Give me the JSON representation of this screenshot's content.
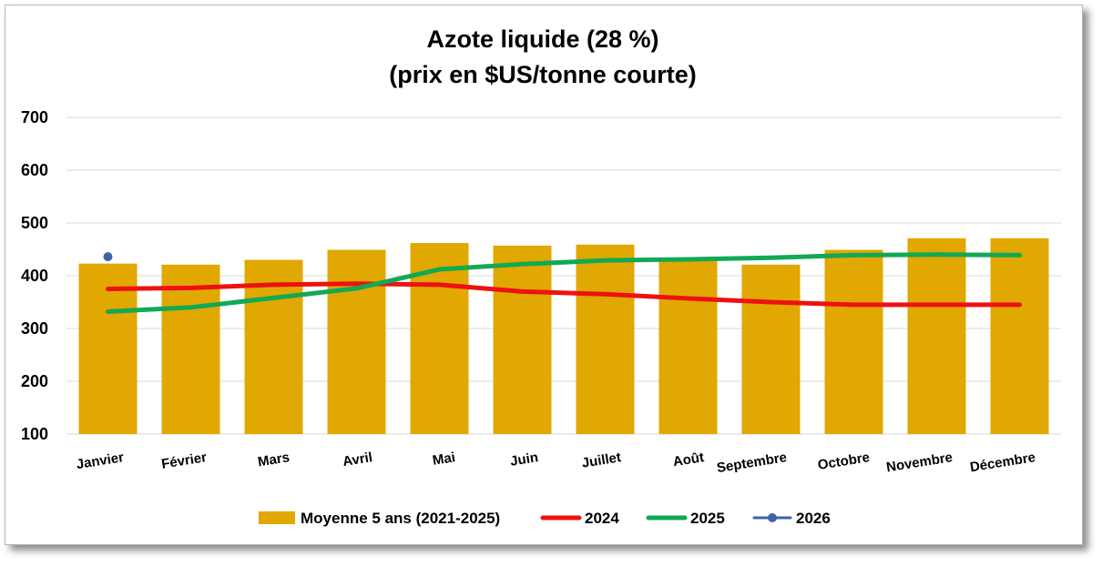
{
  "chart_data": {
    "type": "bar",
    "title": "Azote liquide (28 %)",
    "subtitle": "(prix en $US/tonne courte)",
    "xlabel": "",
    "ylabel": "",
    "ylim": [
      100,
      700
    ],
    "yticks": [
      100,
      200,
      300,
      400,
      500,
      600,
      700
    ],
    "grid": true,
    "legend_position": "bottom",
    "categories": [
      "Janvier",
      "Février",
      "Mars",
      "Avril",
      "Mai",
      "Juin",
      "Juillet",
      "Août",
      "Septembre",
      "Octobre",
      "Novembre",
      "Décembre"
    ],
    "bar_series": {
      "name": "Moyenne 5 ans (2021-2025)",
      "color": "#E0A800",
      "values": [
        423,
        421,
        430,
        449,
        462,
        457,
        459,
        431,
        421,
        449,
        471,
        471
      ]
    },
    "line_series": [
      {
        "name": "2024",
        "color": "#EE1111",
        "values": [
          375,
          377,
          383,
          385,
          383,
          370,
          365,
          357,
          350,
          345,
          345,
          345
        ]
      },
      {
        "name": "2025",
        "color": "#12A855",
        "values": [
          332,
          340,
          358,
          376,
          412,
          422,
          429,
          431,
          434,
          439,
          440,
          439
        ]
      },
      {
        "name": "2026",
        "color": "#3F63A8",
        "values": [
          436
        ],
        "marker": true
      }
    ]
  }
}
